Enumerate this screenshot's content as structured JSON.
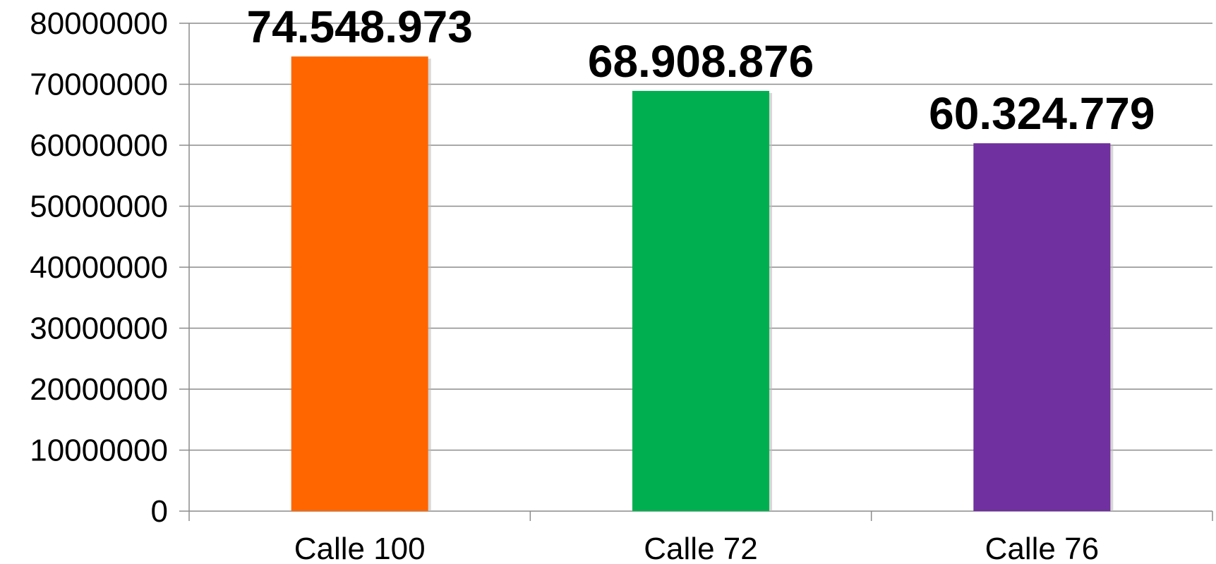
{
  "chart_data": {
    "type": "bar",
    "categories": [
      "Calle 100",
      "Calle 72",
      "Calle 76"
    ],
    "values": [
      74548973,
      68908876,
      60324779
    ],
    "data_labels": [
      "74.548.973",
      "68.908.876",
      "60.324.779"
    ],
    "colors": [
      "#ff6600",
      "#00b050",
      "#7030a0"
    ],
    "ylim": [
      0,
      80000000
    ],
    "yticks": [
      0,
      10000000,
      20000000,
      30000000,
      40000000,
      50000000,
      60000000,
      70000000,
      80000000
    ],
    "ytick_labels": [
      "0",
      "10000000",
      "20000000",
      "30000000",
      "40000000",
      "50000000",
      "60000000",
      "70000000",
      "80000000"
    ],
    "grid": true,
    "legend": "none",
    "title": "",
    "xlabel": "",
    "ylabel": ""
  }
}
